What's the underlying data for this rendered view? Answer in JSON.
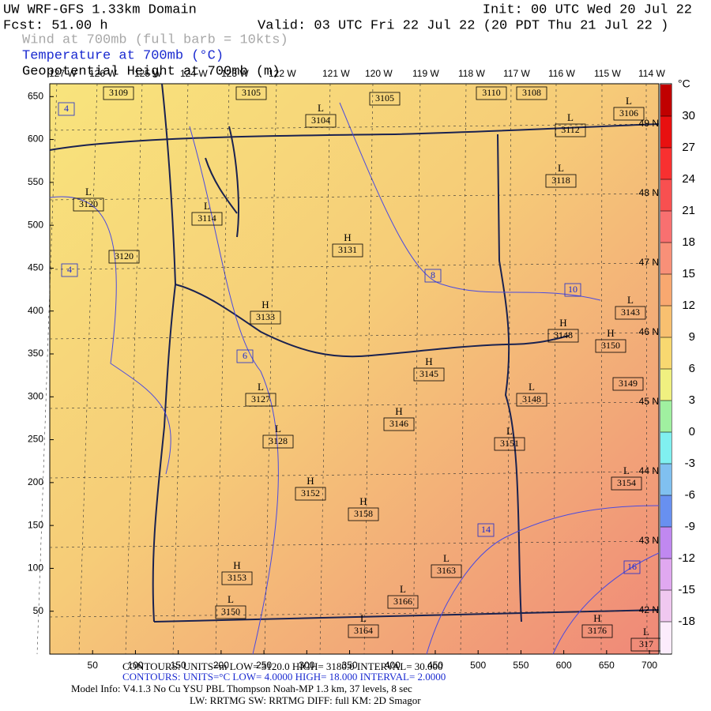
{
  "header": {
    "title": "UW WRF-GFS 1.33km Domain",
    "init": "Init: 00 UTC Wed 20 Jul 22",
    "fcst": "Fcst:  51.00 h",
    "valid": "Valid: 03 UTC Fri 22 Jul 22   (20 PDT Thu 21 Jul 22  )",
    "fields": [
      "Wind at 700mb (full barb = 10kts)",
      "Temperature at 700mb (°C)",
      "Geopotential Height at 700mb (m)"
    ],
    "field_colors": [
      "#a8a8a8",
      "#1a2ad0",
      "#000000"
    ]
  },
  "map": {
    "xticks": [
      50,
      100,
      150,
      200,
      250,
      300,
      350,
      400,
      450,
      500,
      550,
      600,
      650,
      700
    ],
    "yticks": [
      50,
      100,
      150,
      200,
      250,
      300,
      350,
      400,
      450,
      500,
      550,
      600,
      650
    ],
    "xlim": [
      0,
      711
    ],
    "ylim": [
      0,
      665
    ],
    "longitudes": [
      "127 W",
      "126 W",
      "125 W",
      "124 W",
      "123 W",
      "122 W",
      "121 W",
      "120 W",
      "119 W",
      "118 W",
      "117 W",
      "116 W",
      "115 W",
      "114 W"
    ],
    "latitudes": [
      "49 N",
      "48 N",
      "47 N",
      "46 N",
      "45 N",
      "44 N",
      "43 N",
      "42 N"
    ],
    "height_centers": [
      {
        "height": "3109"
      },
      {
        "height": "3105"
      },
      {
        "type": "L",
        "height": "3104"
      },
      {
        "height": "3105"
      },
      {
        "height": "3110"
      },
      {
        "height": "3108"
      },
      {
        "type": "L",
        "height": "3106"
      },
      {
        "type": "L",
        "height": "3112"
      },
      {
        "type": "L",
        "height": "3118"
      },
      {
        "type": "L",
        "height": "3120"
      },
      {
        "type": "L",
        "height": "3114"
      },
      {
        "height": "3120"
      },
      {
        "type": "H",
        "height": "3131"
      },
      {
        "type": "H",
        "height": "3133"
      },
      {
        "type": "L",
        "height": "3143"
      },
      {
        "type": "H",
        "height": "3148"
      },
      {
        "type": "H",
        "height": "3150"
      },
      {
        "type": "H",
        "height": "3145"
      },
      {
        "type": "L",
        "height": "3127"
      },
      {
        "type": "L",
        "height": "3148"
      },
      {
        "height": "3149"
      },
      {
        "type": "H",
        "height": "3146"
      },
      {
        "type": "L",
        "height": "3128"
      },
      {
        "type": "L",
        "height": "3151"
      },
      {
        "type": "H",
        "height": "3152"
      },
      {
        "type": "H",
        "height": "3158"
      },
      {
        "type": "L",
        "height": "3154"
      },
      {
        "type": "L",
        "height": "3163"
      },
      {
        "type": "H",
        "height": "3153"
      },
      {
        "type": "L",
        "height": "3166"
      },
      {
        "type": "L",
        "height": "3150"
      },
      {
        "type": "L",
        "height": "3164"
      },
      {
        "type": "H",
        "height": "3176"
      },
      {
        "type": "L",
        "height": "317"
      }
    ],
    "temperature_labels": [
      "4",
      "4",
      "6",
      "8",
      "10",
      "14",
      "16"
    ]
  },
  "colorbar": {
    "unit": "°C",
    "ticks": [
      30,
      27,
      24,
      21,
      18,
      15,
      12,
      9,
      6,
      3,
      0,
      -3,
      -6,
      -9,
      -12,
      -15,
      -18
    ],
    "lim": [
      -21,
      33
    ],
    "colors": [
      "#fcecfc",
      "#f0c8f0",
      "#e0a8f0",
      "#c088f0",
      "#6890f0",
      "#80c0f0",
      "#80f0f0",
      "#a0f0a0",
      "#f0f080",
      "#f8d870",
      "#f8c070",
      "#f8a870",
      "#f89078",
      "#f87070",
      "#f85050",
      "#f83030",
      "#e81010",
      "#c00000"
    ]
  },
  "footer": {
    "contours_m": "CONTOURS: UNITS=m   LOW= 3120.0      HIGH= 3180.0      INTERVAL= 30.000",
    "contours_c": "CONTOURS: UNITS=°C  LOW= 4.0000      HIGH= 18.000      INTERVAL= 2.0000",
    "model": "Model Info: V4.1.3    No Cu    YSU PBL   Thompson      Noah-MP    1.3 km,   37 levels,     8 sec",
    "physics": "LW: RRTMG  SW: RRTMG    DIFF: full    KM: 2D Smagor"
  }
}
